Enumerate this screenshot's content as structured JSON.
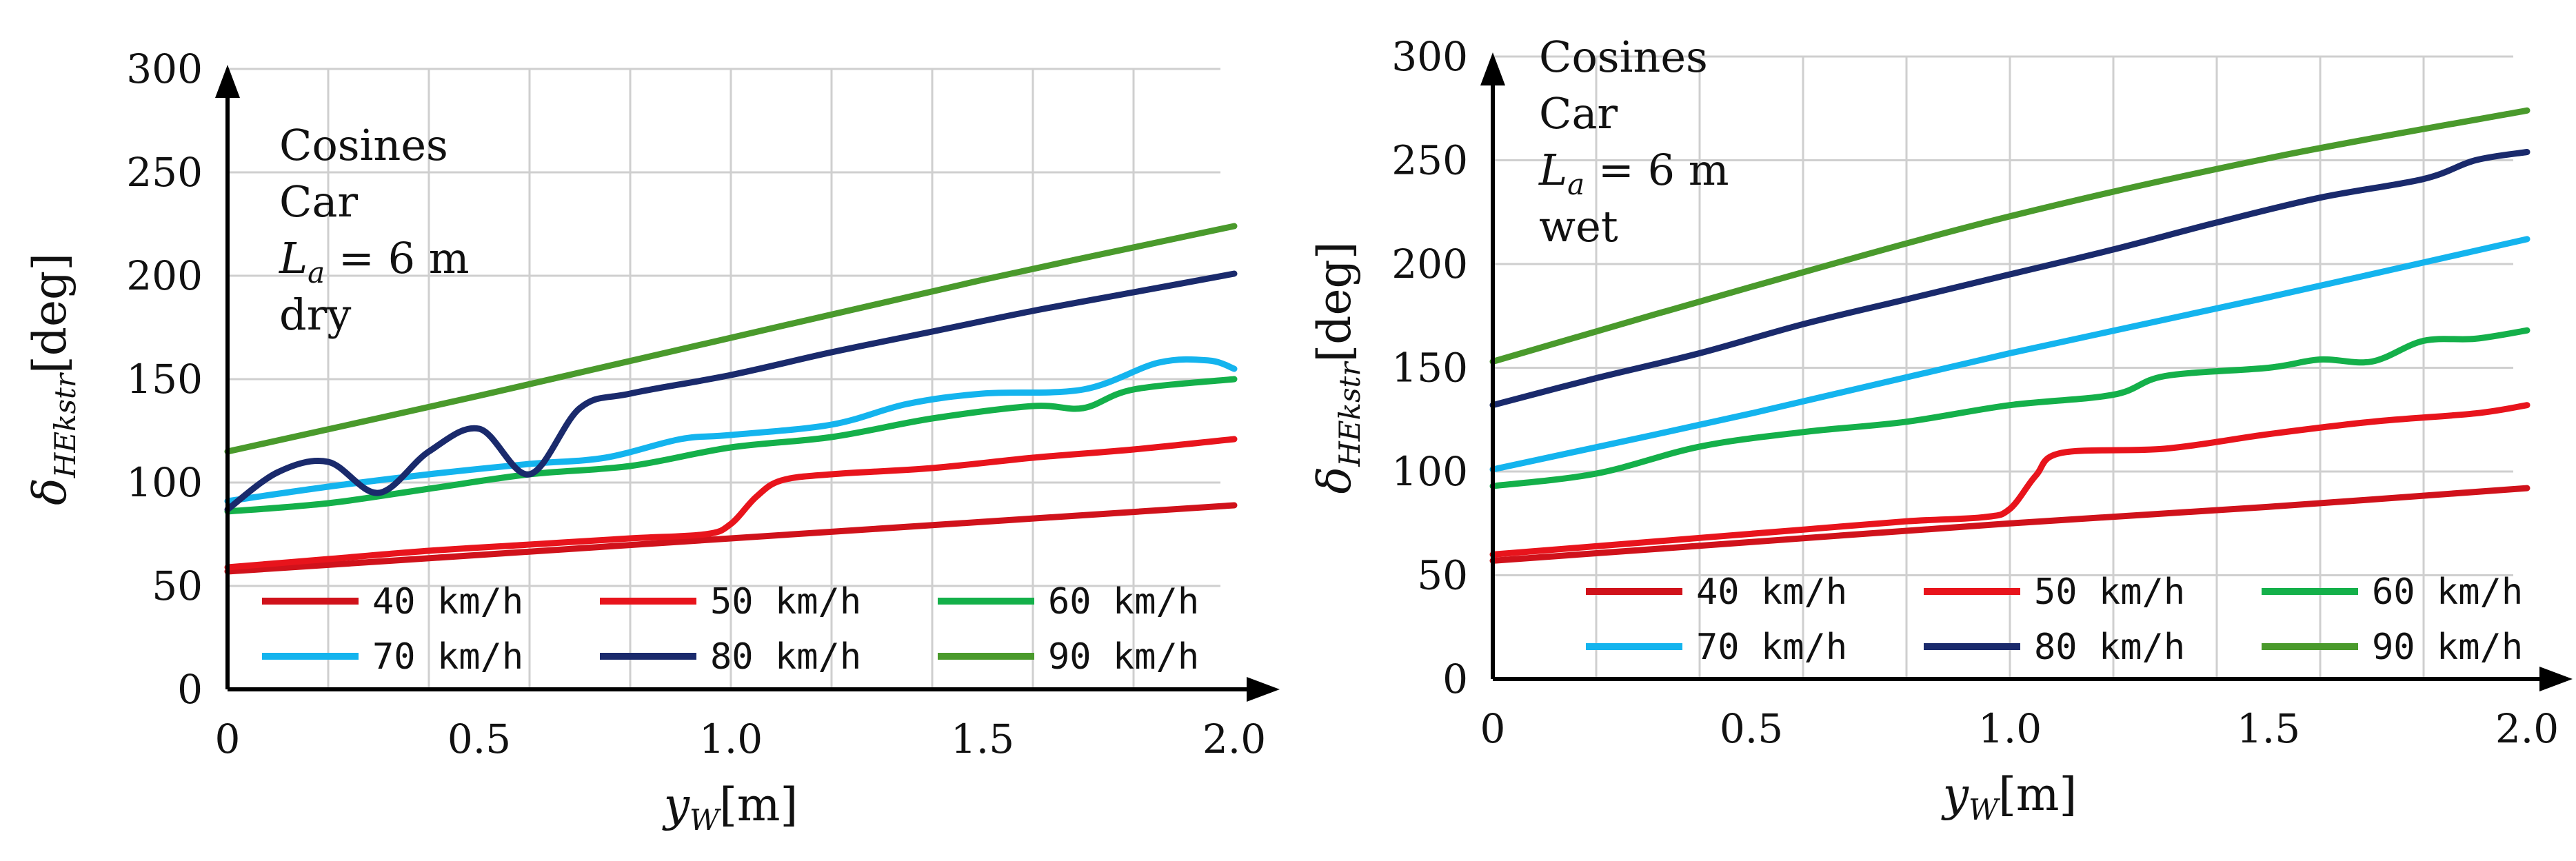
{
  "chart_data": [
    {
      "type": "line",
      "panel": "left",
      "annotation": [
        "Cosines",
        "Car",
        "L_a = 6 m",
        "dry"
      ],
      "annotation_parts": {
        "line1": "Cosines",
        "line2": "Car",
        "la_symbol": "L",
        "la_sub": "a",
        "la_value": "= 6 m",
        "line4": "dry"
      },
      "xlabel": {
        "symbol": "y",
        "sub": "W",
        "unit": "[m]"
      },
      "ylabel": {
        "symbol": "δ",
        "sub": "HEkstr",
        "unit": "[deg]"
      },
      "xlim": [
        0,
        2.0
      ],
      "ylim": [
        0,
        300
      ],
      "xticks": [
        "0",
        "0.5",
        "1.0",
        "1.5",
        "2.0"
      ],
      "yticks": [
        "0",
        "50",
        "100",
        "150",
        "200",
        "250",
        "300"
      ],
      "legend_position": "bottom-center",
      "series": [
        {
          "name": "40 km/h",
          "color": "#d0121b",
          "x": [
            0,
            0.5,
            1.0,
            1.5,
            2.0
          ],
          "y": [
            57,
            65,
            73,
            81,
            89
          ]
        },
        {
          "name": "50 km/h",
          "color": "#e8141c",
          "x": [
            0,
            0.2,
            0.4,
            0.6,
            0.8,
            0.95,
            1.0,
            1.05,
            1.1,
            1.2,
            1.4,
            1.6,
            1.8,
            2.0
          ],
          "y": [
            59,
            63,
            67,
            70,
            73,
            75,
            80,
            93,
            101,
            104,
            107,
            112,
            116,
            121
          ]
        },
        {
          "name": "60 km/h",
          "color": "#14b04a",
          "x": [
            0,
            0.2,
            0.4,
            0.6,
            0.8,
            1.0,
            1.2,
            1.4,
            1.6,
            1.7,
            1.8,
            2.0
          ],
          "y": [
            86,
            90,
            97,
            104,
            108,
            117,
            122,
            131,
            137,
            136,
            145,
            150
          ]
        },
        {
          "name": "70 km/h",
          "color": "#14b4ee",
          "x": [
            0,
            0.2,
            0.4,
            0.6,
            0.75,
            0.9,
            1.0,
            1.2,
            1.35,
            1.5,
            1.7,
            1.85,
            1.95,
            2.0
          ],
          "y": [
            91,
            98,
            104,
            109,
            112,
            121,
            123,
            128,
            138,
            143,
            145,
            158,
            159,
            155
          ]
        },
        {
          "name": "80 km/h",
          "color": "#1a2a6c",
          "x": [
            0,
            0.1,
            0.2,
            0.3,
            0.4,
            0.5,
            0.6,
            0.7,
            0.8,
            1.0,
            1.2,
            1.4,
            1.6,
            1.8,
            2.0
          ],
          "y": [
            87,
            105,
            110,
            95,
            115,
            126,
            104,
            136,
            143,
            152,
            163,
            173,
            183,
            192,
            201
          ]
        },
        {
          "name": "90 km/h",
          "color": "#4a9a2c",
          "x": [
            0,
            0.5,
            1.0,
            1.5,
            2.0
          ],
          "y": [
            115,
            142,
            170,
            198,
            224
          ]
        }
      ]
    },
    {
      "type": "line",
      "panel": "right",
      "annotation": [
        "Cosines",
        "Car",
        "L_a = 6 m",
        "wet"
      ],
      "annotation_parts": {
        "line1": "Cosines",
        "line2": "Car",
        "la_symbol": "L",
        "la_sub": "a",
        "la_value": "= 6 m",
        "line4": "wet"
      },
      "xlabel": {
        "symbol": "y",
        "sub": "W",
        "unit": "[m]"
      },
      "ylabel": {
        "symbol": "δ",
        "sub": "HEkstr",
        "unit": "[deg]"
      },
      "xlim": [
        0,
        2.0
      ],
      "ylim": [
        0,
        300
      ],
      "xticks": [
        "0",
        "0.5",
        "1.0",
        "1.5",
        "2.0"
      ],
      "yticks": [
        "0",
        "50",
        "100",
        "150",
        "200",
        "250",
        "300"
      ],
      "legend_position": "bottom-center",
      "series": [
        {
          "name": "40 km/h",
          "color": "#d0121b",
          "x": [
            0,
            0.5,
            1.0,
            1.5,
            2.0
          ],
          "y": [
            57,
            66,
            75,
            83,
            92
          ]
        },
        {
          "name": "50 km/h",
          "color": "#e8141c",
          "x": [
            0,
            0.2,
            0.4,
            0.6,
            0.8,
            0.95,
            1.0,
            1.05,
            1.1,
            1.3,
            1.5,
            1.7,
            1.9,
            2.0
          ],
          "y": [
            60,
            64,
            68,
            72,
            76,
            78,
            82,
            98,
            109,
            111,
            118,
            124,
            128,
            132
          ]
        },
        {
          "name": "60 km/h",
          "color": "#14b04a",
          "x": [
            0,
            0.2,
            0.4,
            0.6,
            0.8,
            1.0,
            1.2,
            1.3,
            1.5,
            1.6,
            1.7,
            1.8,
            1.9,
            2.0
          ],
          "y": [
            93,
            99,
            112,
            119,
            124,
            132,
            137,
            146,
            150,
            154,
            153,
            163,
            164,
            168
          ]
        },
        {
          "name": "70 km/h",
          "color": "#14b4ee",
          "x": [
            0,
            0.5,
            1.0,
            1.5,
            2.0
          ],
          "y": [
            101,
            128,
            157,
            184,
            212
          ]
        },
        {
          "name": "80 km/h",
          "color": "#1a2a6c",
          "x": [
            0,
            0.2,
            0.4,
            0.6,
            0.8,
            1.0,
            1.2,
            1.4,
            1.6,
            1.8,
            1.9,
            2.0
          ],
          "y": [
            132,
            145,
            157,
            171,
            183,
            195,
            207,
            220,
            232,
            241,
            250,
            254
          ]
        },
        {
          "name": "90 km/h",
          "color": "#4a9a2c",
          "x": [
            0,
            0.5,
            1.0,
            1.5,
            2.0
          ],
          "y": [
            153,
            189,
            223,
            251,
            274
          ]
        }
      ]
    }
  ]
}
